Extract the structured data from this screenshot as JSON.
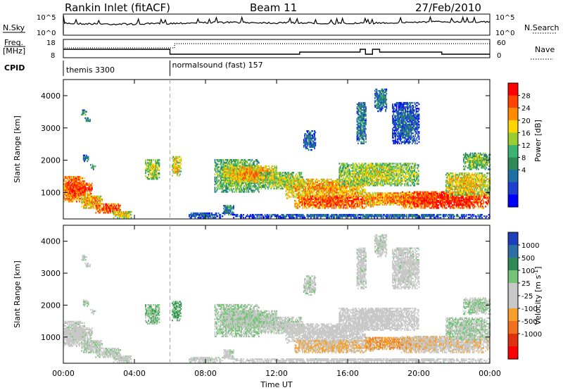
{
  "header": {
    "title": "Rankin Inlet (fitACF)",
    "beam": "Beam 11",
    "date": "27/Feb/2010"
  },
  "nsky_panel": {
    "left_label": "N.Sky",
    "left_ticks": [
      "10^5",
      "10^0"
    ],
    "right_ticks": [
      "10^5",
      "10^0"
    ],
    "right_label": "N.Search",
    "nsearch_legend_line": "dotted"
  },
  "freq_panel": {
    "label_line1": "Freq.",
    "label_line2": "[MHz]",
    "left_ticks": [
      "18",
      "8"
    ],
    "right_ticks": [
      "60",
      "0"
    ],
    "right_label": "Nave",
    "nave_legend_line": "dotted"
  },
  "cpid": {
    "label": "CPID",
    "segments": [
      {
        "start_hour": 0,
        "text": "themis 3300"
      },
      {
        "start_hour": 6.0,
        "text": "normalsound (fast) 157"
      }
    ]
  },
  "x_axis": {
    "ticks": [
      "00:00",
      "04:00",
      "08:00",
      "12:00",
      "16:00",
      "20:00",
      "00:00"
    ],
    "tick_hours": [
      0,
      4,
      8,
      12,
      16,
      20,
      24
    ],
    "label": "Time UT"
  },
  "power_panel": {
    "ylabel": "Slant Range [km]",
    "yticks": [
      "1000",
      "2000",
      "3000",
      "4000"
    ],
    "ytick_values": [
      1000,
      2000,
      3000,
      4000
    ],
    "colorbar_label": "Power [dB]",
    "colorbar_ticks": [
      "28",
      "24",
      "20",
      "16",
      "12",
      "8",
      "4"
    ],
    "colorbar_colors": [
      "#ff0000",
      "#ff4500",
      "#ff8c00",
      "#ffd700",
      "#9acd32",
      "#3cb371",
      "#2e8b57",
      "#1e6fa8",
      "#1f3fd1",
      "#0000ff"
    ]
  },
  "velocity_panel": {
    "ylabel": "Slant Range [km]",
    "yticks": [
      "1000",
      "2000",
      "3000",
      "4000"
    ],
    "ytick_values": [
      1000,
      2000,
      3000,
      4000
    ],
    "colorbar_label": "Velocity [m s",
    "colorbar_label_sup": "-1",
    "colorbar_label_end": "]",
    "colorbar_ticks": [
      "1000",
      "500",
      "100",
      "25",
      "-25",
      "-100",
      "-500",
      "-1000"
    ],
    "colorbar_colors": [
      "#1d3fbb",
      "#2d6fa5",
      "#2e8b57",
      "#74c476",
      "#c8c8c8",
      "#c8c8c8",
      "#f4a02a",
      "#f07020",
      "#e03010",
      "#ff0000"
    ]
  },
  "chart_data": {
    "type": "heatmap",
    "x_unit": "hours UT",
    "xlim": [
      0,
      24
    ],
    "ylim_km": [
      180,
      4500
    ],
    "power_db_range": [
      0,
      30
    ],
    "velocity_range": [
      -1000,
      1000
    ],
    "blobs": [
      {
        "t0": 0.0,
        "t1": 1.2,
        "r0": 700,
        "r1": 1500,
        "p": 26,
        "v": 50
      },
      {
        "t0": 0.1,
        "t1": 1.6,
        "r0": 900,
        "r1": 1300,
        "p": 28,
        "v": 40
      },
      {
        "t0": 1.0,
        "t1": 2.2,
        "r0": 500,
        "r1": 900,
        "p": 22,
        "v": 80
      },
      {
        "t0": 1.8,
        "t1": 3.2,
        "r0": 350,
        "r1": 650,
        "p": 26,
        "v": 60
      },
      {
        "t0": 2.8,
        "t1": 3.8,
        "r0": 200,
        "r1": 400,
        "p": 20,
        "v": 40
      },
      {
        "t0": 1.0,
        "t1": 1.3,
        "r0": 3350,
        "r1": 3550,
        "p": 12,
        "v": 60
      },
      {
        "t0": 1.2,
        "t1": 1.5,
        "r0": 3150,
        "r1": 3300,
        "p": 10,
        "v": 50
      },
      {
        "t0": 1.1,
        "t1": 1.4,
        "r0": 1950,
        "r1": 2150,
        "p": 10,
        "v": 200
      },
      {
        "t0": 1.5,
        "t1": 1.8,
        "r0": 1700,
        "r1": 1850,
        "p": 12,
        "v": 30
      },
      {
        "t0": 4.6,
        "t1": 5.4,
        "r0": 1400,
        "r1": 2000,
        "p": 18,
        "v": 300
      },
      {
        "t0": 6.1,
        "t1": 6.6,
        "r0": 1500,
        "r1": 2100,
        "p": 20,
        "v": 400
      },
      {
        "t0": 8.5,
        "t1": 11.0,
        "r0": 1000,
        "r1": 2000,
        "p": 16,
        "v": 200
      },
      {
        "t0": 9.0,
        "t1": 12.0,
        "r0": 1300,
        "r1": 1800,
        "p": 22,
        "v": 150
      },
      {
        "t0": 11.0,
        "t1": 13.5,
        "r0": 1100,
        "r1": 1600,
        "p": 18,
        "v": 100
      },
      {
        "t0": 12.5,
        "t1": 17.0,
        "r0": 800,
        "r1": 1400,
        "p": 22,
        "v": 0
      },
      {
        "t0": 13.0,
        "t1": 17.5,
        "r0": 500,
        "r1": 900,
        "p": 26,
        "v": -200
      },
      {
        "t0": 15.5,
        "t1": 20.0,
        "r0": 1200,
        "r1": 1900,
        "p": 18,
        "v": 0
      },
      {
        "t0": 17.0,
        "t1": 21.0,
        "r0": 600,
        "r1": 1000,
        "p": 24,
        "v": -300
      },
      {
        "t0": 19.0,
        "t1": 24.0,
        "r0": 500,
        "r1": 1000,
        "p": 28,
        "v": -100
      },
      {
        "t0": 21.5,
        "t1": 24.0,
        "r0": 900,
        "r1": 1600,
        "p": 20,
        "v": 150
      },
      {
        "t0": 22.5,
        "t1": 24.0,
        "r0": 1700,
        "r1": 2200,
        "p": 16,
        "v": 200
      },
      {
        "t0": 17.5,
        "t1": 18.2,
        "r0": 3500,
        "r1": 4200,
        "p": 10,
        "v": 50
      },
      {
        "t0": 18.5,
        "t1": 20.0,
        "r0": 2500,
        "r1": 3800,
        "p": 8,
        "v": 30
      },
      {
        "t0": 16.5,
        "t1": 17.0,
        "r0": 2500,
        "r1": 3800,
        "p": 10,
        "v": 20
      },
      {
        "t0": 13.5,
        "t1": 14.2,
        "r0": 2300,
        "r1": 2900,
        "p": 8,
        "v": 100
      },
      {
        "t0": 9.0,
        "t1": 9.6,
        "r0": 300,
        "r1": 600,
        "p": 10,
        "v": 50
      },
      {
        "t0": 7.0,
        "t1": 9.0,
        "r0": 200,
        "r1": 350,
        "p": 8,
        "v": 30
      },
      {
        "t0": 9.5,
        "t1": 24.0,
        "r0": 200,
        "r1": 320,
        "p": 8,
        "v": 10
      }
    ]
  }
}
